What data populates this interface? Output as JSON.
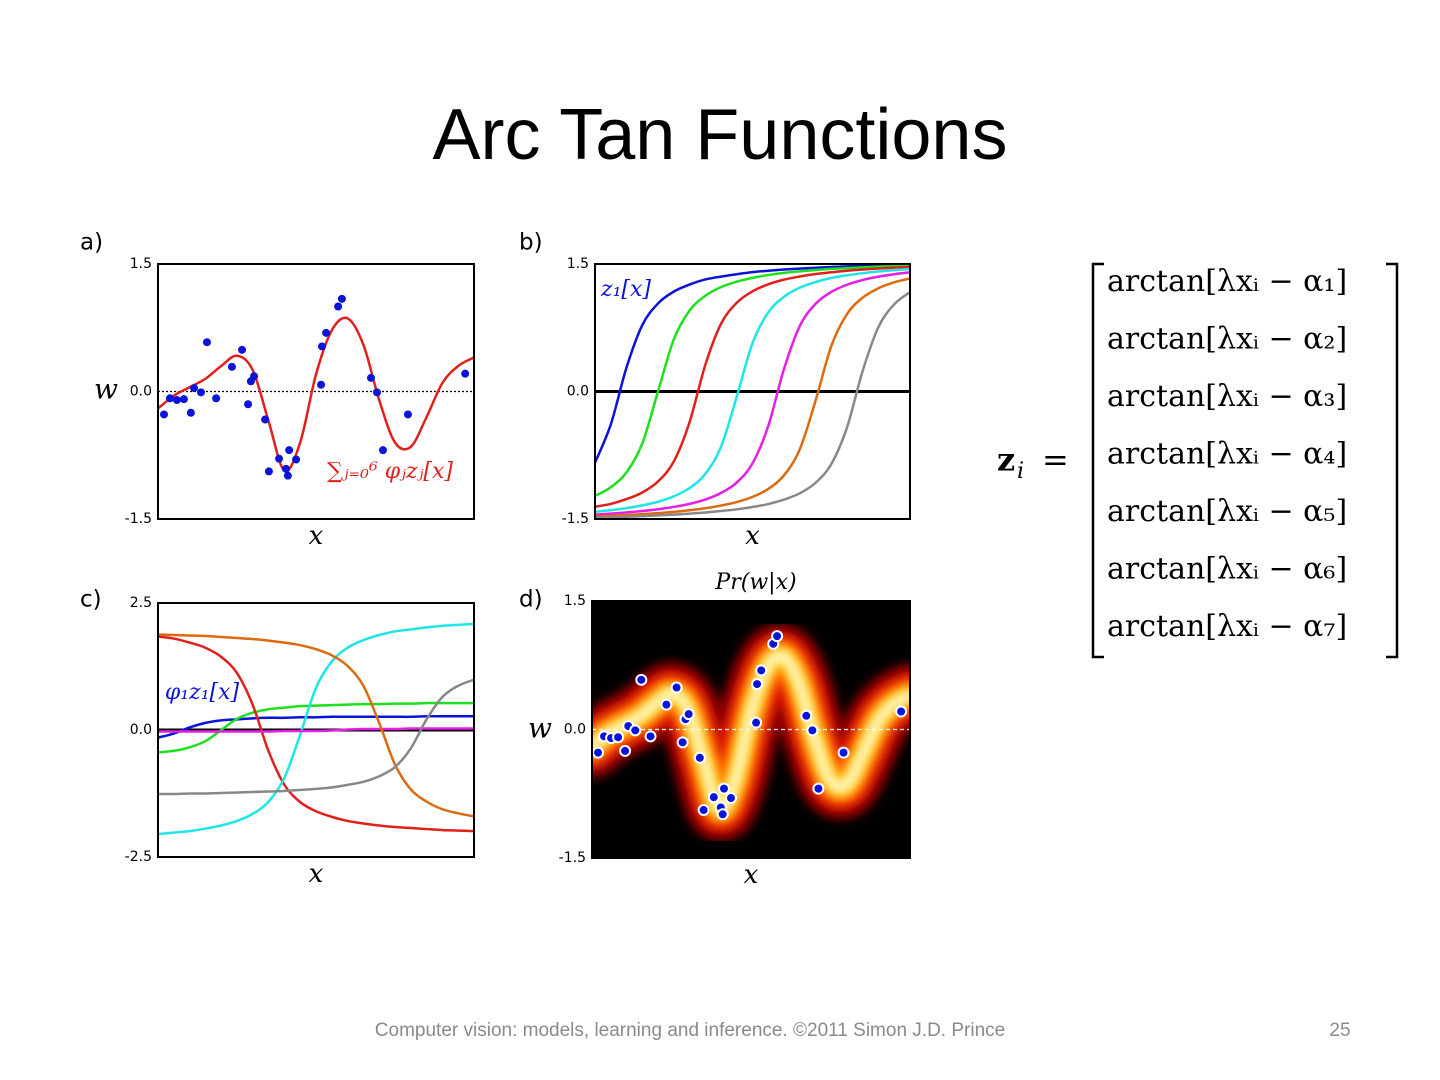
{
  "title": "Arc Tan Functions",
  "footer": "Computer vision: models, learning and inference.  ©2011 Simon J.D. Prince",
  "page_number": "25",
  "equation": {
    "symbol": "z",
    "index": "i",
    "sign": "=",
    "rows": [
      "arctan[λxᵢ − α₁]",
      "arctan[λxᵢ − α₂]",
      "arctan[λxᵢ − α₃]",
      "arctan[λxᵢ − α₄]",
      "arctan[λxᵢ − α₅]",
      "arctan[λxᵢ − α₆]",
      "arctan[λxᵢ − α₇]"
    ]
  },
  "chart_data": [
    {
      "type": "regression",
      "panel_label": "a)",
      "xlabel": "x",
      "ylabel": "w",
      "annotation": {
        "text": "∑ⱼ₌₀⁶ φⱼzⱼ[x]",
        "color": "#e0201b"
      },
      "xlim": [
        0,
        1
      ],
      "ylim": [
        -1.5,
        1.5
      ],
      "yticks": [
        -1.5,
        {
          "value": 0,
          "label": "0.0"
        },
        1.5
      ],
      "zero_line": "dotted",
      "zero_line_color": "#000000",
      "curve": {
        "color": "#e0201b",
        "x": [
          0,
          0.05,
          0.1,
          0.15,
          0.2,
          0.25,
          0.3,
          0.35,
          0.4,
          0.45,
          0.5,
          0.55,
          0.6,
          0.65,
          0.7,
          0.75,
          0.8,
          0.85,
          0.9,
          0.95,
          1
        ],
        "values": [
          -0.2,
          -0.05,
          0.05,
          0.15,
          0.3,
          0.42,
          0.25,
          -0.35,
          -0.93,
          -0.6,
          0.2,
          0.72,
          0.86,
          0.55,
          -0.1,
          -0.6,
          -0.65,
          -0.3,
          0.1,
          0.3,
          0.4
        ]
      },
      "points": {
        "color": "#0a14d8",
        "x": [
          0.019,
          0.038,
          0.06,
          0.082,
          0.104,
          0.114,
          0.136,
          0.155,
          0.184,
          0.234,
          0.266,
          0.285,
          0.294,
          0.304,
          0.339,
          0.351,
          0.383,
          0.405,
          0.411,
          0.415,
          0.437,
          0.516,
          0.519,
          0.532,
          0.57,
          0.582,
          0.674,
          0.693,
          0.712,
          0.791,
          0.972
        ],
        "values": [
          -0.27,
          -0.08,
          -0.1,
          -0.09,
          -0.25,
          0.04,
          -0.01,
          0.58,
          -0.08,
          0.29,
          0.49,
          -0.15,
          0.12,
          0.18,
          -0.33,
          -0.94,
          -0.79,
          -0.91,
          -0.99,
          -0.69,
          -0.8,
          0.08,
          0.53,
          0.69,
          1.0,
          1.09,
          0.16,
          -0.01,
          -0.69,
          -0.27,
          0.21
        ]
      }
    },
    {
      "type": "line",
      "panel_label": "b)",
      "xlabel": "x",
      "annotation": {
        "text": "z₁[x]",
        "color": "#0a14d8"
      },
      "xlim": [
        0,
        1
      ],
      "ylim": [
        -1.5,
        1.5
      ],
      "yticks": [
        -1.5,
        {
          "value": 0,
          "label": "0.0"
        },
        1.5
      ],
      "zero_line": "solid",
      "zero_line_color": "#000000",
      "x": [
        0,
        0.05,
        0.1,
        0.15,
        0.2,
        0.25,
        0.3,
        0.35,
        0.4,
        0.45,
        0.5,
        0.55,
        0.6,
        0.65,
        0.7,
        0.75,
        0.8,
        0.85,
        0.9,
        0.95,
        1
      ],
      "series": [
        {
          "color": "#0a14d8",
          "values": [
            -0.837,
            -0.389,
            0.282,
            0.78,
            1.036,
            1.175,
            1.258,
            1.318,
            1.352,
            1.38,
            1.404,
            1.421,
            1.435,
            1.446,
            1.456,
            1.465,
            1.472,
            1.478,
            1.484,
            1.489,
            1.493
          ]
        },
        {
          "color": "#1ee01e",
          "values": [
            -1.228,
            -1.126,
            -0.951,
            -0.611,
            0,
            0.611,
            0.951,
            1.126,
            1.228,
            1.292,
            1.337,
            1.37,
            1.395,
            1.413,
            1.429,
            1.442,
            1.452,
            1.461,
            1.469,
            1.476,
            1.482
          ]
        },
        {
          "color": "#e0201b",
          "values": [
            -1.356,
            -1.323,
            -1.266,
            -1.188,
            -1.059,
            -0.824,
            -0.363,
            0.31,
            0.796,
            1.044,
            1.179,
            1.261,
            1.316,
            1.353,
            1.382,
            1.403,
            1.421,
            1.435,
            1.447,
            1.457,
            1.465
          ]
        },
        {
          "color": "#1fe5e5",
          "values": [
            -1.415,
            -1.396,
            -1.372,
            -1.34,
            -1.297,
            -1.234,
            -1.137,
            -0.97,
            -0.65,
            -0.06,
            0.569,
            0.93,
            1.115,
            1.221,
            1.288,
            1.335,
            1.367,
            1.392,
            1.412,
            1.428,
            1.441
          ]
        },
        {
          "color": "#e51fe5",
          "values": [
            -1.448,
            -1.437,
            -1.423,
            -1.406,
            -1.385,
            -1.358,
            -1.322,
            -1.271,
            -1.194,
            -1.071,
            -0.846,
            -0.406,
            0.264,
            0.77,
            1.031,
            1.171,
            1.256,
            1.312,
            1.351,
            1.38,
            1.402
          ]
        },
        {
          "color": "#dd6a10",
          "values": [
            -1.47,
            -1.463,
            -1.454,
            -1.443,
            -1.431,
            -1.416,
            -1.397,
            -1.374,
            -1.342,
            -1.301,
            -1.24,
            -1.146,
            -0.986,
            -0.681,
            -0.11,
            0.533,
            0.911,
            1.105,
            1.215,
            1.284,
            1.33
          ]
        },
        {
          "color": "#888888",
          "values": [
            -1.485,
            -1.48,
            -1.474,
            -1.466,
            -1.458,
            -1.449,
            -1.437,
            -1.423,
            -1.406,
            -1.386,
            -1.359,
            -1.324,
            -1.272,
            -1.198,
            -1.075,
            -0.855,
            -0.423,
            0.245,
            0.76,
            1.026,
            1.169
          ]
        }
      ]
    },
    {
      "type": "line",
      "panel_label": "c)",
      "xlabel": "x",
      "annotation": {
        "text": "φ₁z₁[x]",
        "color": "#0a14d8"
      },
      "xlim": [
        0,
        1
      ],
      "ylim": [
        -2.5,
        2.5
      ],
      "yticks": [
        -2.5,
        {
          "value": 0,
          "label": "0.0"
        },
        2.5
      ],
      "zero_line": "solid",
      "zero_line_color": "#000000",
      "x": [
        0,
        0.05,
        0.1,
        0.15,
        0.2,
        0.25,
        0.3,
        0.35,
        0.4,
        0.45,
        0.5,
        0.55,
        0.6,
        0.65,
        0.7,
        0.75,
        0.8,
        0.85,
        0.9,
        0.95,
        1
      ],
      "series": [
        {
          "color": "#0a14d8",
          "values": [
            -0.15,
            -0.07,
            0.05,
            0.14,
            0.19,
            0.21,
            0.23,
            0.24,
            0.24,
            0.25,
            0.25,
            0.26,
            0.26,
            0.26,
            0.26,
            0.26,
            0.26,
            0.27,
            0.27,
            0.27,
            0.27
          ]
        },
        {
          "color": "#1ee01e",
          "values": [
            -0.44,
            -0.41,
            -0.34,
            -0.22,
            0,
            0.22,
            0.34,
            0.41,
            0.44,
            0.47,
            0.48,
            0.49,
            0.5,
            0.51,
            0.51,
            0.52,
            0.52,
            0.53,
            0.53,
            0.53,
            0.53
          ]
        },
        {
          "color": "#e0201b",
          "values": [
            1.84,
            1.8,
            1.72,
            1.62,
            1.44,
            1.12,
            0.49,
            -0.42,
            -1.08,
            -1.42,
            -1.6,
            -1.71,
            -1.79,
            -1.84,
            -1.88,
            -1.91,
            -1.93,
            -1.95,
            -1.97,
            -1.98,
            -1.99
          ]
        },
        {
          "color": "#1fe5e5",
          "values": [
            -2.05,
            -2.02,
            -1.99,
            -1.94,
            -1.88,
            -1.79,
            -1.65,
            -1.41,
            -0.94,
            -0.09,
            0.83,
            1.35,
            1.62,
            1.77,
            1.87,
            1.94,
            1.98,
            2.02,
            2.05,
            2.07,
            2.09
          ]
        },
        {
          "color": "#e51fe5",
          "values": [
            -0.03,
            -0.03,
            -0.03,
            -0.03,
            -0.03,
            -0.03,
            -0.03,
            -0.03,
            -0.02,
            -0.02,
            -0.02,
            -0.01,
            0.01,
            0.02,
            0.02,
            0.02,
            0.03,
            0.03,
            0.03,
            0.03,
            0.03
          ]
        },
        {
          "color": "#dd6a10",
          "values": [
            1.88,
            1.87,
            1.86,
            1.85,
            1.83,
            1.81,
            1.79,
            1.76,
            1.72,
            1.67,
            1.59,
            1.47,
            1.26,
            0.87,
            0.14,
            -0.68,
            -1.17,
            -1.41,
            -1.56,
            -1.64,
            -1.7
          ]
        },
        {
          "color": "#888888",
          "values": [
            -1.26,
            -1.26,
            -1.25,
            -1.25,
            -1.24,
            -1.23,
            -1.22,
            -1.21,
            -1.2,
            -1.18,
            -1.16,
            -1.13,
            -1.08,
            -1.02,
            -0.91,
            -0.73,
            -0.36,
            0.21,
            0.65,
            0.87,
            0.99
          ]
        }
      ]
    },
    {
      "type": "density",
      "panel_label": "d)",
      "title": "Pr(w|x)",
      "xlabel": "x",
      "ylabel": "w",
      "xlim": [
        0,
        1
      ],
      "ylim": [
        -1.5,
        1.5
      ],
      "yticks": [
        -1.5,
        {
          "value": 0,
          "label": "0.0"
        },
        1.5
      ],
      "zero_line": "dashed",
      "zero_line_color": "#ffffff",
      "background": "#000000",
      "curve": {
        "color": "#ffffff",
        "x": [
          0,
          0.05,
          0.1,
          0.15,
          0.2,
          0.25,
          0.3,
          0.35,
          0.4,
          0.45,
          0.5,
          0.55,
          0.6,
          0.65,
          0.7,
          0.75,
          0.8,
          0.85,
          0.9,
          0.95,
          1
        ],
        "values": [
          -0.2,
          -0.05,
          0.05,
          0.15,
          0.3,
          0.42,
          0.25,
          -0.35,
          -0.93,
          -0.6,
          0.2,
          0.72,
          0.86,
          0.55,
          -0.1,
          -0.6,
          -0.65,
          -0.3,
          0.1,
          0.3,
          0.4
        ]
      },
      "points": {
        "color": "#0a14d8",
        "x": [
          0.019,
          0.038,
          0.06,
          0.082,
          0.104,
          0.114,
          0.136,
          0.155,
          0.184,
          0.234,
          0.266,
          0.285,
          0.294,
          0.304,
          0.339,
          0.351,
          0.383,
          0.405,
          0.411,
          0.415,
          0.437,
          0.516,
          0.519,
          0.532,
          0.57,
          0.582,
          0.674,
          0.693,
          0.712,
          0.791,
          0.972
        ],
        "values": [
          -0.27,
          -0.08,
          -0.1,
          -0.09,
          -0.25,
          0.04,
          -0.01,
          0.58,
          -0.08,
          0.29,
          0.49,
          -0.15,
          0.12,
          0.18,
          -0.33,
          -0.94,
          -0.79,
          -0.91,
          -0.99,
          -0.69,
          -0.8,
          0.08,
          0.53,
          0.69,
          1.0,
          1.09,
          0.16,
          -0.01,
          -0.69,
          -0.27,
          0.21
        ]
      }
    }
  ]
}
